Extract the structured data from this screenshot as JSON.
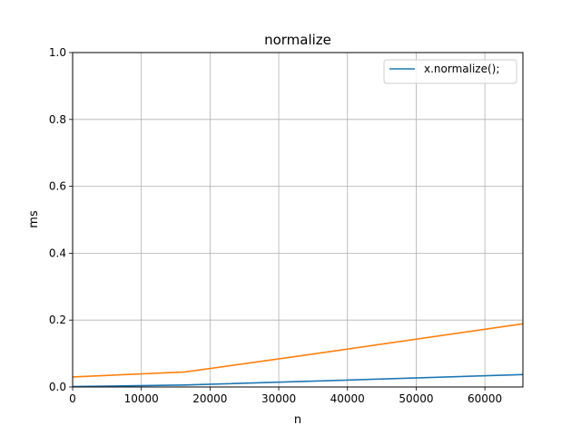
{
  "chart_data": {
    "type": "line",
    "title": "normalize",
    "xlabel": "n",
    "ylabel": "ms",
    "xlim": [
      0,
      65536
    ],
    "ylim": [
      0,
      1.0
    ],
    "xticks": [
      0,
      10000,
      20000,
      30000,
      40000,
      50000,
      60000
    ],
    "xtick_labels": [
      "0",
      "10000",
      "20000",
      "30000",
      "40000",
      "50000",
      "60000"
    ],
    "yticks": [
      0,
      0.2,
      0.4,
      0.6,
      0.8,
      1.0
    ],
    "ytick_labels": [
      "0.0",
      "0.2",
      "0.4",
      "0.6",
      "0.8",
      "1.0"
    ],
    "grid": true,
    "legend_position": "top-right",
    "series": [
      {
        "name": "x.normalize();",
        "color": "#1f77b4",
        "in_legend": true,
        "x": [
          0,
          16384,
          32768,
          65536
        ],
        "values": [
          0.001,
          0.006,
          0.016,
          0.037
        ]
      },
      {
        "color": "#ff7f0e",
        "in_legend": false,
        "x": [
          0,
          16384,
          32768,
          65536
        ],
        "values": [
          0.03,
          0.045,
          0.092,
          0.189
        ]
      }
    ]
  }
}
